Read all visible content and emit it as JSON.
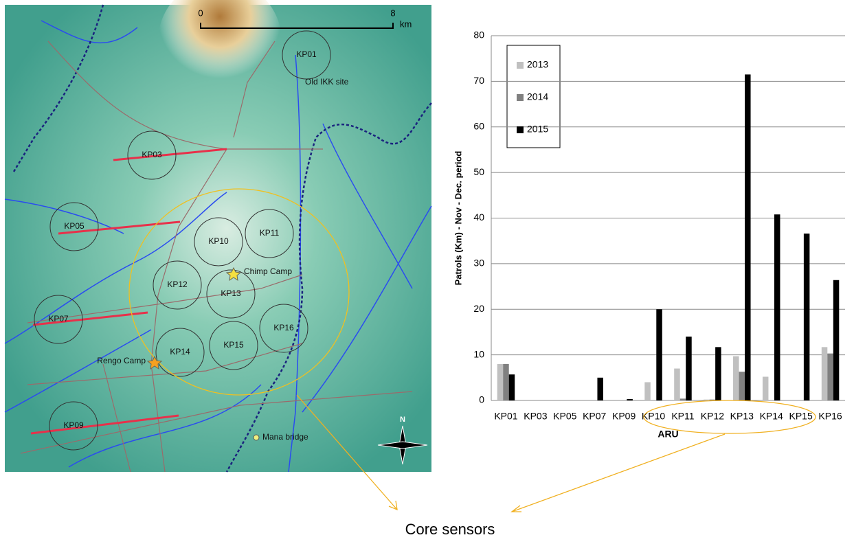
{
  "chart_data": {
    "type": "bar",
    "x_label": "ARU",
    "y_label": "Patrols (Km) - Nov - Dec. period",
    "categories": [
      "KP01",
      "KP03",
      "KP05",
      "KP07",
      "KP09",
      "KP10",
      "KP11",
      "KP12",
      "KP13",
      "KP14",
      "KP15",
      "KP16"
    ],
    "series": [
      {
        "name": "2013",
        "color": "#c0c0c0",
        "values": [
          8,
          0,
          0,
          0,
          0,
          4,
          7,
          0.2,
          9.7,
          5.2,
          0,
          11.7
        ]
      },
      {
        "name": "2014",
        "color": "#808080",
        "values": [
          8,
          0,
          0,
          0,
          0,
          0,
          0.4,
          0.2,
          6.3,
          0,
          0,
          10.3
        ]
      },
      {
        "name": "2015",
        "color": "#000000",
        "values": [
          5.7,
          0,
          0,
          5,
          0.3,
          20,
          14,
          11.7,
          71.5,
          40.8,
          36.6,
          26.4
        ]
      }
    ],
    "ylim": [
      0,
      80
    ],
    "yticks": [
      0,
      10,
      20,
      30,
      40,
      50,
      60,
      70,
      80
    ],
    "grid": true,
    "legend": "upper left"
  },
  "map": {
    "sensors": [
      "KP01",
      "KP03",
      "KP05",
      "KP07",
      "KP09",
      "KP10",
      "KP11",
      "KP12",
      "KP13",
      "KP14",
      "KP15",
      "KP16"
    ],
    "places": [
      "Old IKK site",
      "Chimp Camp",
      "Rengo Camp",
      "Mana bridge"
    ],
    "scale": {
      "start": "0",
      "end": "8",
      "unit": "km"
    },
    "north": "N"
  },
  "annotation": "Core sensors"
}
